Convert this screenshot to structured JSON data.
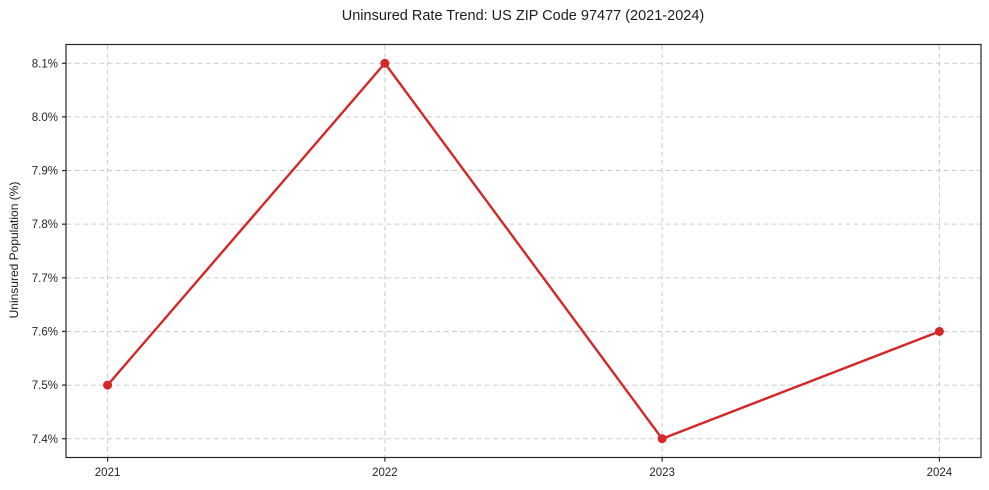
{
  "chart_data": {
    "type": "line",
    "title": "Uninsured Rate Trend: US ZIP Code 97477 (2021-2024)",
    "xlabel": "",
    "ylabel": "Uninsured Population (%)",
    "x": [
      2021,
      2022,
      2023,
      2024
    ],
    "x_tick_labels": [
      "2021",
      "2022",
      "2023",
      "2024"
    ],
    "series": [
      {
        "name": "Uninsured Population (%)",
        "values": [
          7.5,
          8.1,
          7.4,
          7.6
        ]
      }
    ],
    "y_ticks": [
      7.4,
      7.5,
      7.6,
      7.7,
      7.8,
      7.9,
      8.0,
      8.1
    ],
    "y_tick_labels": [
      "7.4%",
      "7.5%",
      "7.6%",
      "7.7%",
      "7.8%",
      "7.9%",
      "8.0%",
      "8.1%"
    ],
    "xlim": [
      2020.85,
      2024.15
    ],
    "ylim": [
      7.365,
      8.135
    ],
    "grid": true,
    "grid_style": "dashed",
    "legend": false,
    "marker": "circle",
    "colors": {
      "line": "#d62728",
      "marker": "#d62728",
      "grid": "#cccccc",
      "axis": "#262626",
      "text": "#262626",
      "background": "#ffffff"
    }
  }
}
